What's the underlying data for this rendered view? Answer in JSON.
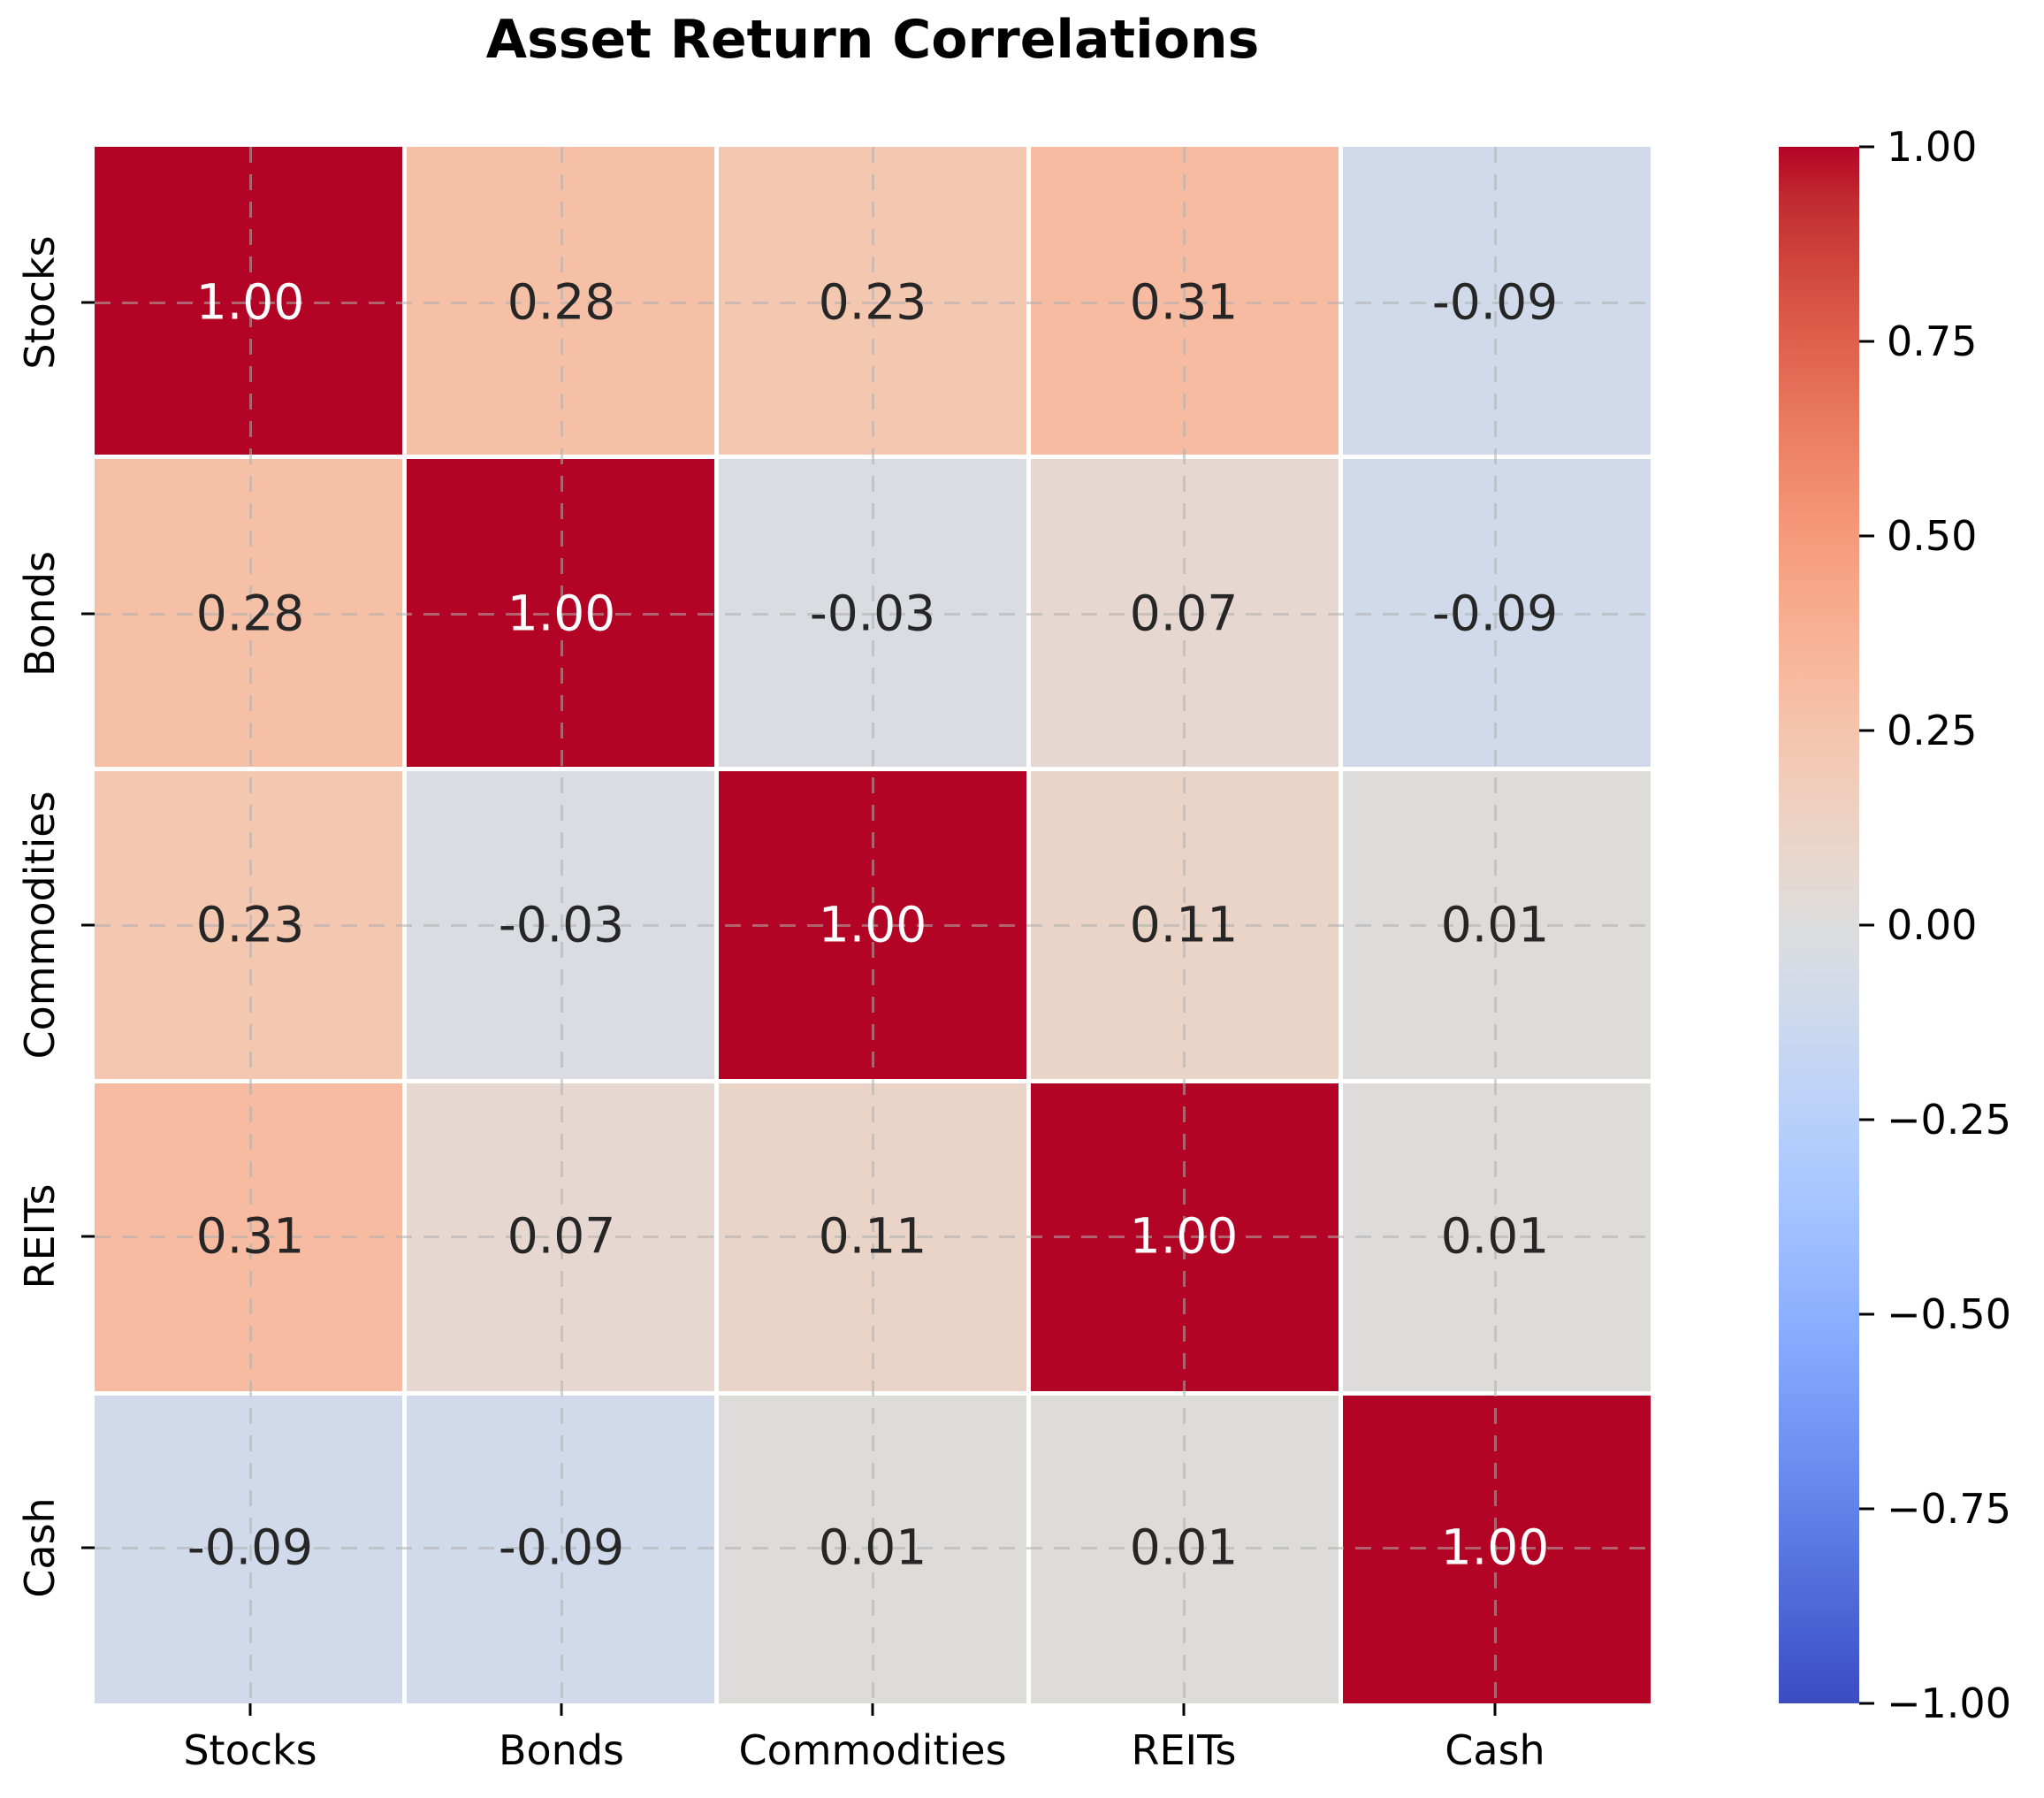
{
  "title": "Asset Return Correlations",
  "chart_data": {
    "type": "heatmap",
    "title": "Asset Return Correlations",
    "categories": [
      "Stocks",
      "Bonds",
      "Commodities",
      "REITs",
      "Cash"
    ],
    "x_tick_labels": [
      "Stocks",
      "Bonds",
      "Commodities",
      "REITs",
      "Cash"
    ],
    "y_tick_labels": [
      "Stocks",
      "Bonds",
      "Commodities",
      "REITs",
      "Cash"
    ],
    "matrix": [
      [
        1.0,
        0.28,
        0.23,
        0.31,
        -0.09
      ],
      [
        0.28,
        1.0,
        -0.03,
        0.07,
        -0.09
      ],
      [
        0.23,
        -0.03,
        1.0,
        0.11,
        0.01
      ],
      [
        0.31,
        0.07,
        0.11,
        1.0,
        0.01
      ],
      [
        -0.09,
        -0.09,
        0.01,
        0.01,
        1.0
      ]
    ],
    "vmin": -1.0,
    "vmax": 1.0,
    "annotation_decimals": 2,
    "grid_style": "dashed",
    "legend_position": "right-colorbar",
    "colorbar_ticks": [
      "1.00",
      "0.75",
      "0.50",
      "0.25",
      "0.00",
      "−0.25",
      "−0.50",
      "−0.75",
      "−1.00"
    ],
    "colormap_name": "coolwarm",
    "colormap_anchors": [
      "#3b4cc0",
      "#445acc",
      "#4d68d7",
      "#5775e1",
      "#6282ea",
      "#6c8ef1",
      "#779af7",
      "#82a5fb",
      "#8db0fe",
      "#98b9ff",
      "#a3c2ff",
      "#aec9fd",
      "#b8d0f9",
      "#c2d5f4",
      "#ccd9ee",
      "#d5dbe6",
      "#dddddd",
      "#e5d8d1",
      "#ecd3c5",
      "#f1ccb9",
      "#f5c4ad",
      "#f7bba0",
      "#f7b194",
      "#f7a687",
      "#f49a7b",
      "#f18d6f",
      "#ec7f63",
      "#e57058",
      "#de604d",
      "#d55042",
      "#cb3e38",
      "#c0282f",
      "#b40426"
    ]
  },
  "colors": {
    "max_red": "#b40426",
    "min_blue": "#3b4cc0",
    "neutral_mid": "#dddddd",
    "annotation_dark": "#262626",
    "annotation_light": "#ffffff",
    "grid_line": "#afafaf",
    "cell_separator": "#ffffff",
    "axis_text": "#000000"
  }
}
